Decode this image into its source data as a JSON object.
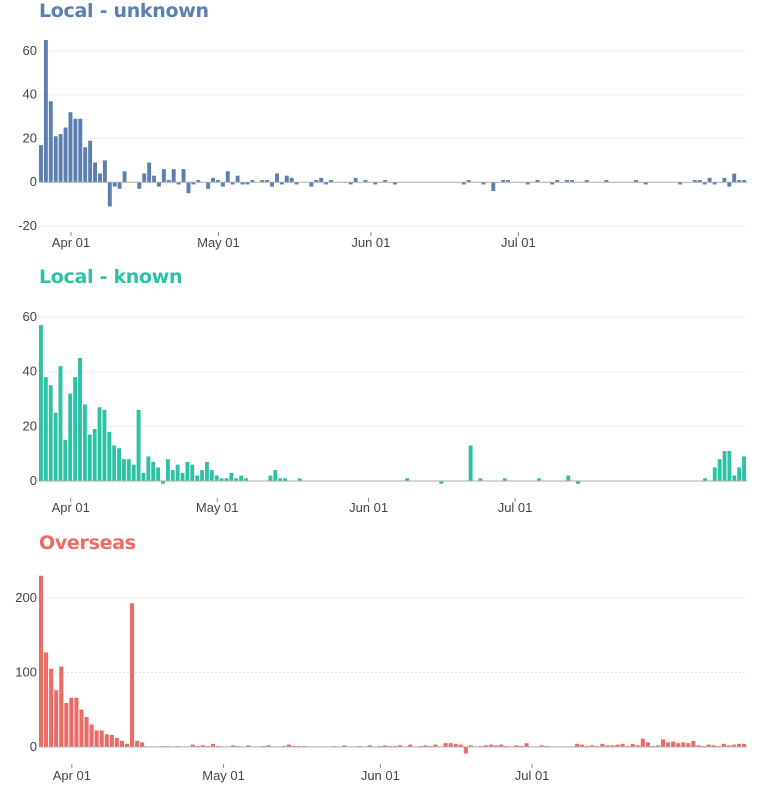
{
  "chart_data": [
    {
      "type": "bar",
      "title": "Local - unknown",
      "color": "#5b7fb1",
      "start_date": "2020-03-26",
      "x_tick_labels": [
        "Apr 01",
        "May 01",
        "Jun 01",
        "Jul 01"
      ],
      "x_tick_dates": [
        "2020-04-01",
        "2020-05-01",
        "2020-06-01",
        "2020-07-01"
      ],
      "y_ticks": [
        -20,
        0,
        20,
        40,
        60
      ],
      "ylim": [
        -20,
        65
      ],
      "values": [
        17,
        65,
        37,
        21,
        22,
        25,
        32,
        29,
        29,
        16,
        19,
        9,
        4,
        10,
        -11,
        -2,
        -3,
        5,
        0,
        0,
        -3,
        4,
        9,
        3,
        -2,
        6,
        1,
        6,
        -1,
        6,
        -5,
        -1,
        1,
        0,
        -3,
        2,
        1,
        -2,
        5,
        -1,
        3,
        -1,
        -1,
        1,
        0,
        1,
        1,
        -2,
        4,
        -1,
        3,
        2,
        -1,
        0,
        0,
        -2,
        1,
        2,
        -1,
        1,
        0,
        0,
        0,
        -1,
        2,
        0,
        1,
        0,
        -1,
        0,
        1,
        0,
        -1,
        0,
        0,
        0,
        0,
        0,
        0,
        0,
        0,
        0,
        0,
        0,
        0,
        0,
        -1,
        1,
        0,
        0,
        -1,
        0,
        -4,
        0,
        1,
        1,
        0,
        0,
        0,
        -1,
        0,
        1,
        0,
        0,
        -1,
        1,
        0,
        1,
        1,
        0,
        0,
        1,
        0,
        0,
        0,
        1,
        0,
        0,
        0,
        0,
        0,
        1,
        0,
        -1,
        0,
        0,
        0,
        0,
        0,
        0,
        -1,
        0,
        0,
        1,
        1,
        -1,
        2,
        -1,
        0,
        2,
        -2,
        4,
        1,
        1
      ]
    },
    {
      "type": "bar",
      "title": "Local - known",
      "color": "#2cc2a5",
      "start_date": "2020-03-26",
      "x_tick_labels": [
        "Apr 01",
        "May 01",
        "Jun 01",
        "Jul 01"
      ],
      "x_tick_dates": [
        "2020-04-01",
        "2020-05-01",
        "2020-06-01",
        "2020-07-01"
      ],
      "y_ticks": [
        0,
        20,
        40,
        60
      ],
      "ylim": [
        -4,
        64
      ],
      "values": [
        57,
        38,
        35,
        25,
        42,
        15,
        32,
        38,
        45,
        28,
        17,
        19,
        27,
        26,
        18,
        13,
        12,
        8,
        8,
        6,
        26,
        3,
        9,
        7,
        5,
        -1,
        8,
        4,
        6,
        3,
        7,
        6,
        2,
        4,
        7,
        4,
        2,
        1,
        1,
        3,
        1,
        2,
        1,
        0,
        0,
        0,
        0,
        2,
        4,
        1,
        1,
        0,
        0,
        1,
        0,
        0,
        0,
        0,
        0,
        0,
        0,
        0,
        0,
        0,
        0,
        0,
        0,
        0,
        0,
        0,
        0,
        0,
        0,
        0,
        0,
        1,
        0,
        0,
        0,
        0,
        0,
        0,
        -1,
        0,
        0,
        0,
        0,
        0,
        13,
        0,
        1,
        0,
        0,
        0,
        0,
        1,
        0,
        0,
        0,
        0,
        0,
        0,
        1,
        0,
        0,
        0,
        0,
        0,
        2,
        0,
        -1,
        0,
        0,
        0,
        0,
        0,
        0,
        0,
        0,
        0,
        0,
        0,
        0,
        0,
        0,
        0,
        0,
        0,
        0,
        0,
        0,
        0,
        0,
        0,
        0,
        0,
        1,
        0,
        5,
        8,
        11,
        11,
        2,
        5,
        9
      ]
    },
    {
      "type": "bar",
      "title": "Overseas",
      "color": "#ee6a66",
      "start_date": "2020-03-26",
      "x_tick_labels": [
        "Apr 01",
        "May 01",
        "Jun 01",
        "Jul 01"
      ],
      "x_tick_dates": [
        "2020-04-01",
        "2020-05-01",
        "2020-06-01",
        "2020-07-01"
      ],
      "y_ticks": [
        0,
        100,
        200
      ],
      "ylim": [
        -15,
        235
      ],
      "values": [
        230,
        127,
        105,
        76,
        108,
        59,
        66,
        66,
        50,
        40,
        30,
        22,
        22,
        17,
        16,
        12,
        8,
        4,
        193,
        8,
        6,
        0,
        0,
        0,
        1,
        1,
        0,
        1,
        0,
        0,
        3,
        1,
        2,
        1,
        4,
        1,
        0,
        0,
        2,
        1,
        0,
        2,
        0,
        0,
        1,
        2,
        0,
        0,
        1,
        3,
        1,
        1,
        1,
        0,
        0,
        0,
        0,
        0,
        1,
        0,
        2,
        0,
        0,
        1,
        0,
        2,
        0,
        1,
        2,
        1,
        1,
        2,
        0,
        3,
        0,
        1,
        2,
        1,
        3,
        0,
        5,
        5,
        4,
        3,
        -9,
        2,
        0,
        1,
        2,
        3,
        2,
        3,
        1,
        0,
        2,
        1,
        5,
        0,
        0,
        2,
        1,
        0,
        0,
        0,
        0,
        0,
        4,
        3,
        1,
        2,
        1,
        4,
        2,
        2,
        3,
        4,
        1,
        4,
        2,
        11,
        6,
        1,
        2,
        10,
        6,
        7,
        5,
        6,
        5,
        8,
        2,
        1,
        3,
        2,
        1,
        4,
        2,
        3,
        4,
        4
      ]
    }
  ]
}
